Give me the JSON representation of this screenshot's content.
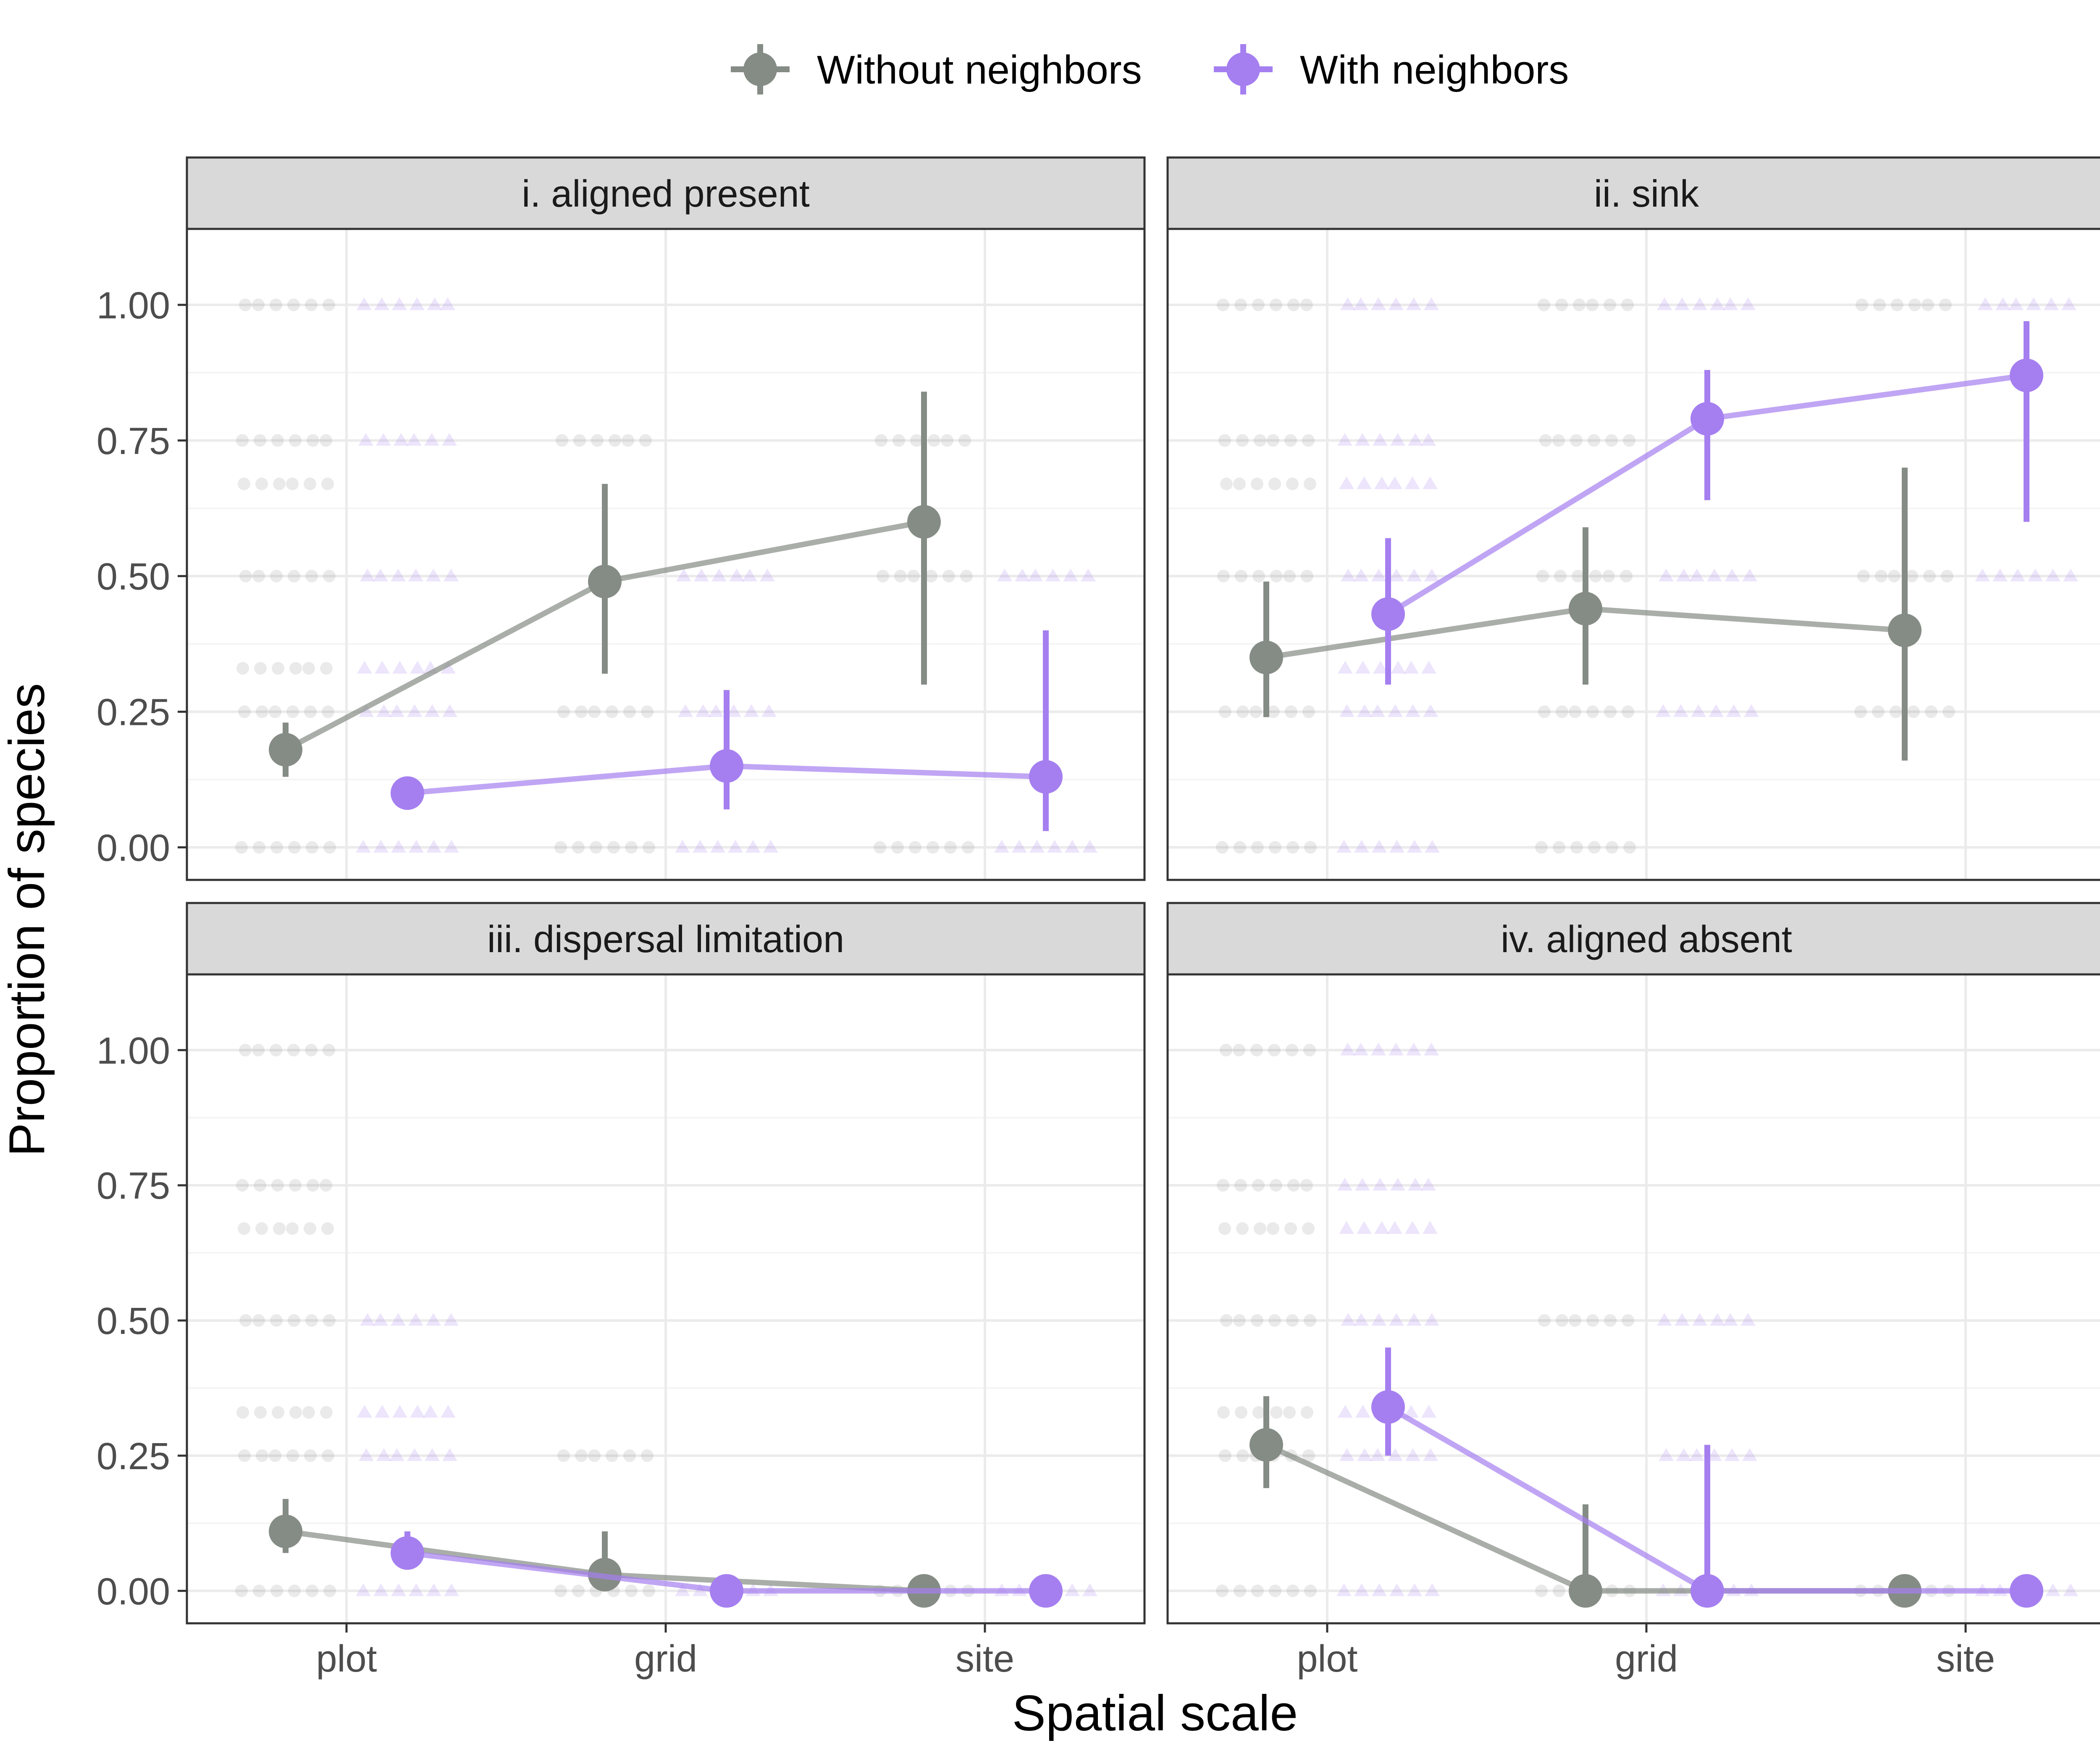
{
  "colors": {
    "without": "#858c85",
    "with": "#a57ff0"
  },
  "legend": [
    {
      "key": "without",
      "label": "Without neighbors"
    },
    {
      "key": "with",
      "label": "With neighbors"
    }
  ],
  "chart_data": {
    "type": "scatter",
    "xlabel": "Spatial scale",
    "ylabel": "Proportion of species",
    "categories": [
      "plot",
      "grid",
      "site"
    ],
    "ylim": [
      -0.06,
      1.14
    ],
    "y_ticks": [
      0,
      0.25,
      0.5,
      0.75,
      1.0
    ],
    "y_tick_labels": [
      "0.00",
      "0.25",
      "0.50",
      "0.75",
      "1.00"
    ],
    "grid": true,
    "legend_position": "top",
    "panels": [
      {
        "title": "i. aligned present",
        "series": [
          {
            "key": "without",
            "name": "Without neighbors",
            "values": [
              0.18,
              0.49,
              0.6
            ],
            "lower": [
              0.13,
              0.32,
              0.3
            ],
            "upper": [
              0.23,
              0.67,
              0.84
            ],
            "raw_y": [
              [
                0,
                0.25,
                0.33,
                0.5,
                0.67,
                0.75,
                1.0
              ],
              [
                0,
                0.25,
                0.75
              ],
              [
                0,
                0.5,
                0.75
              ]
            ]
          },
          {
            "key": "with",
            "name": "With neighbors",
            "values": [
              0.1,
              0.15,
              0.13
            ],
            "lower": [
              0.08,
              0.07,
              0.03
            ],
            "upper": [
              0.12,
              0.29,
              0.4
            ],
            "raw_y": [
              [
                0,
                0.25,
                0.33,
                0.5,
                0.75,
                1.0
              ],
              [
                0,
                0.25,
                0.5
              ],
              [
                0,
                0.5
              ]
            ]
          }
        ]
      },
      {
        "title": "ii. sink",
        "series": [
          {
            "key": "without",
            "name": "Without neighbors",
            "values": [
              0.35,
              0.44,
              0.4
            ],
            "lower": [
              0.24,
              0.3,
              0.16
            ],
            "upper": [
              0.49,
              0.59,
              0.7
            ],
            "raw_y": [
              [
                0,
                0.25,
                0.5,
                0.67,
                0.75,
                1.0
              ],
              [
                0,
                0.25,
                0.5,
                0.75,
                1.0
              ],
              [
                0.25,
                0.5,
                1.0
              ]
            ]
          },
          {
            "key": "with",
            "name": "With neighbors",
            "values": [
              0.43,
              0.79,
              0.87
            ],
            "lower": [
              0.3,
              0.64,
              0.6
            ],
            "upper": [
              0.57,
              0.88,
              0.97
            ],
            "raw_y": [
              [
                0,
                0.25,
                0.33,
                0.5,
                0.67,
                0.75,
                1.0
              ],
              [
                0.25,
                0.5,
                1.0
              ],
              [
                0.5,
                1.0
              ]
            ]
          }
        ]
      },
      {
        "title": "iii. dispersal limitation",
        "series": [
          {
            "key": "without",
            "name": "Without neighbors",
            "values": [
              0.11,
              0.03,
              0.0
            ],
            "lower": [
              0.07,
              0.0,
              0.0
            ],
            "upper": [
              0.17,
              0.11,
              0.0
            ],
            "raw_y": [
              [
                0,
                0.25,
                0.33,
                0.5,
                0.67,
                0.75,
                1.0
              ],
              [
                0,
                0.25
              ],
              [
                0
              ]
            ]
          },
          {
            "key": "with",
            "name": "With neighbors",
            "values": [
              0.07,
              0.0,
              0.0
            ],
            "lower": [
              0.05,
              0.0,
              0.0
            ],
            "upper": [
              0.11,
              0.0,
              0.0
            ],
            "raw_y": [
              [
                0,
                0.25,
                0.33,
                0.5
              ],
              [
                0
              ],
              [
                0
              ]
            ]
          }
        ]
      },
      {
        "title": "iv. aligned absent",
        "series": [
          {
            "key": "without",
            "name": "Without neighbors",
            "values": [
              0.27,
              0.0,
              0.0
            ],
            "lower": [
              0.19,
              0.0,
              0.0
            ],
            "upper": [
              0.36,
              0.16,
              0.0
            ],
            "raw_y": [
              [
                0,
                0.25,
                0.33,
                0.5,
                0.67,
                0.75,
                1.0
              ],
              [
                0,
                0.5
              ],
              [
                0
              ]
            ]
          },
          {
            "key": "with",
            "name": "With neighbors",
            "values": [
              0.34,
              0.0,
              0.0
            ],
            "lower": [
              0.25,
              0.0,
              0.0
            ],
            "upper": [
              0.45,
              0.27,
              0.0
            ],
            "raw_y": [
              [
                0,
                0.25,
                0.33,
                0.5,
                0.67,
                0.75,
                1.0
              ],
              [
                0,
                0.25,
                0.5
              ],
              [
                0
              ]
            ]
          }
        ]
      }
    ]
  }
}
